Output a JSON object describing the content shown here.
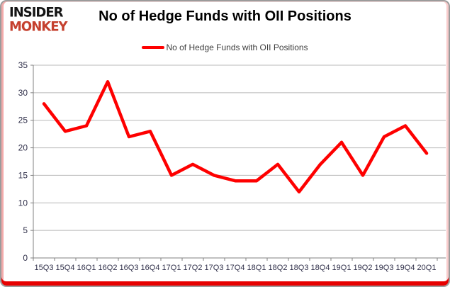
{
  "logo": {
    "line1": "INSIDER",
    "line2": "MONKEY",
    "line1_color": "#141414",
    "line2_color": "#c5402e"
  },
  "header": {
    "title": "No of Hedge Funds with OII Positions"
  },
  "legend": {
    "label": "No of Hedge Funds with OII Positions",
    "marker_color": "#fe0000"
  },
  "colors": {
    "line": "#fe0000",
    "axis": "#808080",
    "gridline": "#b8b8b8",
    "tick_label": "#30304a",
    "border_red": "#e60000"
  },
  "chart_data": {
    "type": "line",
    "title": "No of Hedge Funds with OII Positions",
    "xlabel": "",
    "ylabel": "",
    "categories": [
      "15Q3",
      "15Q4",
      "16Q1",
      "16Q2",
      "16Q3",
      "16Q4",
      "17Q1",
      "17Q2",
      "17Q3",
      "17Q4",
      "18Q1",
      "18Q2",
      "18Q3",
      "18Q4",
      "19Q1",
      "19Q2",
      "19Q3",
      "19Q4",
      "20Q1"
    ],
    "series": [
      {
        "name": "No of Hedge Funds with OII Positions",
        "color": "#fe0000",
        "values": [
          28,
          23,
          24,
          32,
          22,
          23,
          15,
          17,
          15,
          14,
          14,
          17,
          12,
          17,
          21,
          15,
          22,
          24,
          19
        ]
      }
    ],
    "ylim": [
      0,
      35
    ],
    "yticks": [
      0,
      5,
      10,
      15,
      20,
      25,
      30,
      35
    ],
    "grid": true,
    "legend_position": "top-center"
  }
}
